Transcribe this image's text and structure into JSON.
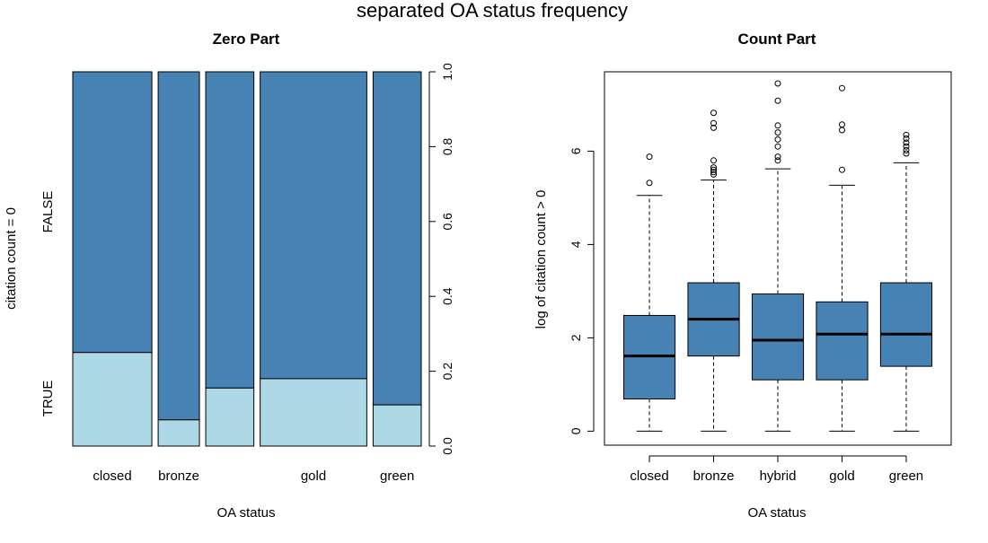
{
  "figure_title": "separated OA status frequency",
  "colors": {
    "bar_fill": "#4682b4",
    "true_fill": "#add8e6",
    "line": "#000000",
    "background": "#ffffff"
  },
  "chart_data": [
    {
      "type": "bar",
      "subtype": "spineplot",
      "title": "Zero Part",
      "xlabel": "OA status",
      "ylabel": "citation count = 0",
      "categories": [
        "closed",
        "bronze",
        "hybrid",
        "gold",
        "green"
      ],
      "category_labels_shown": [
        "closed",
        "bronze",
        "",
        "gold",
        "green"
      ],
      "category_widths": [
        0.23,
        0.12,
        0.14,
        0.31,
        0.14
      ],
      "levels": [
        "TRUE",
        "FALSE"
      ],
      "series": [
        {
          "name": "TRUE",
          "values": [
            0.25,
            0.07,
            0.155,
            0.18,
            0.11
          ]
        },
        {
          "name": "FALSE",
          "values": [
            0.75,
            0.93,
            0.845,
            0.82,
            0.89
          ]
        }
      ],
      "right_axis_ticks": [
        "0.0",
        "0.2",
        "0.4",
        "0.6",
        "0.8",
        "1.0"
      ],
      "ylim": [
        0,
        1
      ],
      "grid": false
    },
    {
      "type": "boxplot",
      "title": "Count Part",
      "xlabel": "OA status",
      "ylabel": "log of citation count > 0",
      "categories": [
        "closed",
        "bronze",
        "hybrid",
        "gold",
        "green"
      ],
      "y_ticks": [
        "0",
        "2",
        "4",
        "6"
      ],
      "ylim": [
        -0.3,
        7.7
      ],
      "boxes": [
        {
          "name": "closed",
          "min": 0,
          "q1": 0.69,
          "median": 1.61,
          "q3": 2.48,
          "max": 5.05,
          "outliers": [
            5.32,
            5.88
          ]
        },
        {
          "name": "bronze",
          "min": 0,
          "q1": 1.61,
          "median": 2.4,
          "q3": 3.18,
          "max": 5.38,
          "outliers": [
            5.5,
            5.55,
            5.6,
            5.65,
            5.8,
            6.5,
            6.6,
            6.82
          ]
        },
        {
          "name": "hybrid",
          "min": 0,
          "q1": 1.1,
          "median": 1.95,
          "q3": 2.94,
          "max": 5.62,
          "outliers": [
            5.8,
            5.88,
            6.1,
            6.25,
            6.4,
            6.55,
            7.08,
            7.45
          ]
        },
        {
          "name": "gold",
          "min": 0,
          "q1": 1.1,
          "median": 2.08,
          "q3": 2.77,
          "max": 5.27,
          "outliers": [
            5.6,
            6.45,
            6.57,
            7.35
          ]
        },
        {
          "name": "green",
          "min": 0,
          "q1": 1.39,
          "median": 2.08,
          "q3": 3.18,
          "max": 5.75,
          "outliers": [
            5.95,
            6.02,
            6.1,
            6.18,
            6.27,
            6.35
          ]
        }
      ],
      "grid": false
    }
  ]
}
